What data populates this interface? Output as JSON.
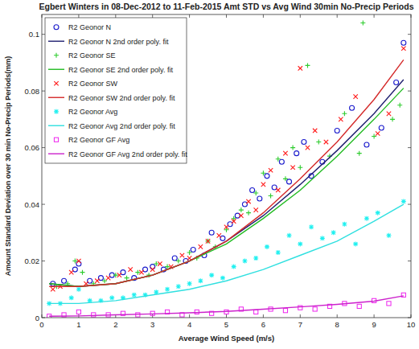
{
  "chart_data": {
    "type": "scatter",
    "title": "Egbert Winters in 08-Dec-2012 to 11-Feb-2015 Amt STD vs Avg Wind 30min No-Precip Periods",
    "x_label": "Average Wind Speed (m/s)",
    "y_label": "Amount Standard Deviation over 30 min No-Precip Periods(mm)",
    "xlim": [
      0,
      10
    ],
    "xticks": [
      0,
      1,
      2,
      3,
      4,
      5,
      6,
      7,
      8,
      9,
      10
    ],
    "ylim": [
      0,
      0.107
    ],
    "yticks": [
      0,
      0.02,
      0.04,
      0.06,
      0.08,
      0.1
    ],
    "grid": false,
    "legend": "top-left",
    "series": [
      {
        "name": "R2 Geonor N",
        "type": "scatter",
        "marker": "circle",
        "color": "#1a1acc",
        "x": [
          0.3,
          0.6,
          0.9,
          1.0,
          1.3,
          1.6,
          1.9,
          2.2,
          2.5,
          2.8,
          3.0,
          3.3,
          3.6,
          3.9,
          4.1,
          4.4,
          4.6,
          4.9,
          5.1,
          5.3,
          5.5,
          5.7,
          5.9,
          6.1,
          6.3,
          6.5,
          6.7,
          6.9,
          7.1,
          7.3,
          7.6,
          8.0,
          8.4,
          8.8,
          9.2,
          9.6,
          9.8
        ],
        "values": [
          0.012,
          0.013,
          0.017,
          0.019,
          0.013,
          0.014,
          0.015,
          0.016,
          0.014,
          0.017,
          0.018,
          0.017,
          0.021,
          0.02,
          0.024,
          0.022,
          0.03,
          0.028,
          0.033,
          0.036,
          0.04,
          0.045,
          0.042,
          0.05,
          0.046,
          0.055,
          0.048,
          0.058,
          0.062,
          0.05,
          0.055,
          0.066,
          0.074,
          0.061,
          0.067,
          0.083,
          0.097
        ]
      },
      {
        "name": "R2 Geonor N 2nd order poly. fit",
        "type": "line",
        "line_style": "solid",
        "color": "#202070",
        "x": [
          0.2,
          1,
          2,
          3,
          4,
          5,
          6,
          7,
          8,
          9,
          9.8
        ],
        "values": [
          0.012,
          0.011,
          0.012,
          0.015,
          0.02,
          0.027,
          0.036,
          0.047,
          0.059,
          0.072,
          0.084
        ]
      },
      {
        "name": "R2 Geonor SE",
        "type": "scatter",
        "marker": "plus",
        "color": "#2ecc2e",
        "x": [
          0.4,
          0.7,
          0.9,
          1.1,
          1.4,
          1.7,
          2.0,
          2.3,
          2.6,
          2.9,
          3.1,
          3.4,
          3.7,
          4.0,
          4.2,
          4.5,
          4.7,
          5.0,
          5.2,
          5.4,
          5.6,
          5.8,
          6.0,
          6.2,
          6.4,
          6.6,
          6.8,
          7.0,
          7.2,
          7.5,
          7.8,
          8.2,
          8.6,
          8.7,
          9.0,
          9.5,
          9.7
        ],
        "values": [
          0.011,
          0.012,
          0.02,
          0.016,
          0.012,
          0.013,
          0.015,
          0.014,
          0.016,
          0.015,
          0.019,
          0.018,
          0.02,
          0.023,
          0.021,
          0.027,
          0.025,
          0.031,
          0.035,
          0.038,
          0.037,
          0.044,
          0.051,
          0.043,
          0.056,
          0.049,
          0.06,
          0.053,
          0.089,
          0.062,
          0.057,
          0.072,
          0.058,
          0.104,
          0.064,
          0.07,
          0.075
        ]
      },
      {
        "name": "R2 Geonor SE 2nd order poly. fit",
        "type": "line",
        "line_style": "solid",
        "color": "#22bb22",
        "x": [
          0.2,
          1,
          2,
          3,
          4,
          5,
          6,
          7,
          8,
          9,
          9.8
        ],
        "values": [
          0.012,
          0.011,
          0.012,
          0.015,
          0.02,
          0.026,
          0.035,
          0.045,
          0.057,
          0.07,
          0.081
        ]
      },
      {
        "name": "R2 Geonor SW",
        "type": "scatter",
        "marker": "x",
        "color": "#ff1a1a",
        "x": [
          0.3,
          0.5,
          0.8,
          1.0,
          1.2,
          1.5,
          1.8,
          2.1,
          2.4,
          2.7,
          3.0,
          3.2,
          3.5,
          3.8,
          4.0,
          4.3,
          4.5,
          4.8,
          5.0,
          5.2,
          5.4,
          5.6,
          5.8,
          6.0,
          6.2,
          6.4,
          6.6,
          6.8,
          7.0,
          7.2,
          7.4,
          7.7,
          8.1,
          8.5,
          9.1,
          9.4,
          9.8
        ],
        "values": [
          0.01,
          0.011,
          0.016,
          0.02,
          0.012,
          0.013,
          0.014,
          0.015,
          0.017,
          0.016,
          0.017,
          0.019,
          0.018,
          0.022,
          0.021,
          0.025,
          0.027,
          0.029,
          0.032,
          0.034,
          0.036,
          0.041,
          0.038,
          0.047,
          0.052,
          0.045,
          0.058,
          0.053,
          0.088,
          0.06,
          0.066,
          0.062,
          0.07,
          0.078,
          0.065,
          0.072,
          0.095
        ]
      },
      {
        "name": "R2 Geonor SW 2nd order poly. fit",
        "type": "line",
        "line_style": "solid",
        "color": "#d42a2a",
        "x": [
          0.2,
          1,
          2,
          3,
          4,
          5,
          6,
          7,
          8,
          9,
          9.8
        ],
        "values": [
          0.011,
          0.011,
          0.012,
          0.015,
          0.02,
          0.027,
          0.037,
          0.049,
          0.062,
          0.077,
          0.091
        ]
      },
      {
        "name": "R2 Geonor Avg",
        "type": "scatter",
        "marker": "star",
        "color": "#22f0f0",
        "x": [
          0.2,
          0.5,
          0.8,
          1.0,
          1.3,
          1.6,
          1.9,
          2.2,
          2.5,
          2.8,
          3.1,
          3.4,
          3.7,
          4.0,
          4.3,
          4.6,
          4.9,
          5.2,
          5.5,
          5.8,
          6.1,
          6.4,
          6.7,
          7.0,
          7.3,
          7.6,
          7.9,
          8.2,
          8.5,
          8.8,
          9.1,
          9.4,
          9.8
        ],
        "values": [
          0.005,
          0.005,
          0.007,
          0.01,
          0.006,
          0.006,
          0.007,
          0.007,
          0.008,
          0.008,
          0.009,
          0.01,
          0.011,
          0.012,
          0.013,
          0.015,
          0.014,
          0.018,
          0.02,
          0.021,
          0.025,
          0.023,
          0.029,
          0.026,
          0.032,
          0.028,
          0.03,
          0.033,
          0.026,
          0.035,
          0.037,
          0.029,
          0.041
        ]
      },
      {
        "name": "R2 Geonor Avg 2nd order poly. fit",
        "type": "line",
        "line_style": "solid",
        "color": "#30e0e0",
        "x": [
          0.2,
          1,
          2,
          3,
          4,
          5,
          6,
          7,
          8,
          9,
          9.8
        ],
        "values": [
          0.005,
          0.005,
          0.006,
          0.008,
          0.01,
          0.013,
          0.017,
          0.022,
          0.027,
          0.034,
          0.04
        ]
      },
      {
        "name": "R2 Geonor GF Avg",
        "type": "scatter",
        "marker": "square",
        "color": "#ee22ee",
        "x": [
          0.2,
          0.6,
          1.0,
          1.4,
          1.8,
          2.2,
          2.6,
          3.0,
          3.4,
          3.8,
          4.2,
          4.6,
          5.0,
          5.4,
          5.8,
          6.2,
          6.6,
          7.0,
          7.4,
          7.8,
          8.2,
          8.6,
          9.0,
          9.4,
          9.8
        ],
        "values": [
          0.0005,
          0.001,
          0.002,
          0.001,
          0.001,
          0.0015,
          0.001,
          0.0015,
          0.002,
          0.001,
          0.002,
          0.0015,
          0.002,
          0.003,
          0.002,
          0.003,
          0.0025,
          0.0035,
          0.003,
          0.004,
          0.005,
          0.004,
          0.006,
          0.005,
          0.008
        ]
      },
      {
        "name": "R2 Geonor GF Avg 2nd order poly. fit",
        "type": "line",
        "line_style": "solid",
        "color": "#cc22cc",
        "x": [
          0.2,
          1,
          2,
          3,
          4,
          5,
          6,
          7,
          8,
          9,
          9.8
        ],
        "values": [
          0.0005,
          0.0006,
          0.001,
          0.0013,
          0.0017,
          0.0022,
          0.003,
          0.0038,
          0.0047,
          0.0058,
          0.0077
        ]
      }
    ]
  }
}
